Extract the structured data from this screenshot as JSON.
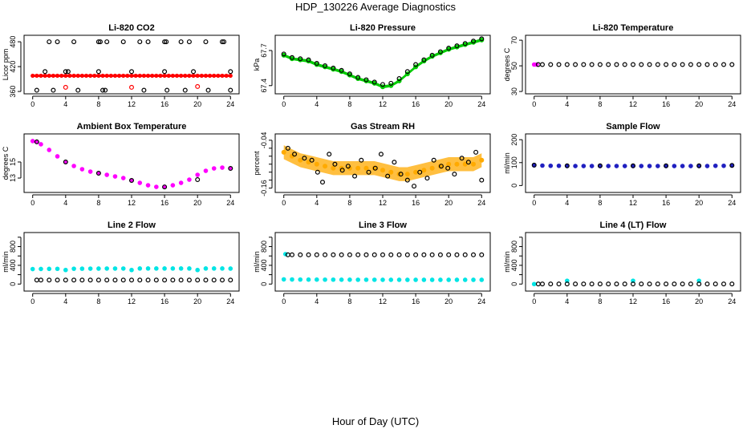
{
  "figure": {
    "title": "HDP_130226  Average Diagnostics",
    "xlabel": "Hour of Day (UTC)"
  },
  "chart_data": [
    {
      "type": "scatter",
      "title": "Li-820 CO2",
      "ylabel": "Licor ppm",
      "xlim": [
        0,
        24
      ],
      "xticks": [
        0,
        4,
        8,
        12,
        16,
        20,
        24
      ],
      "ylim": [
        360,
        490
      ],
      "yticks": [
        360,
        420,
        480
      ],
      "series": [
        {
          "style": "red-band",
          "color": "#ff0000",
          "x_range": [
            0,
            24
          ],
          "y": [
            395,
            401
          ]
        },
        {
          "style": "open-circle",
          "color": "#000000",
          "x": [
            2,
            3,
            5,
            8,
            8.2,
            9,
            11,
            13,
            14,
            16,
            16.2,
            18,
            19,
            21,
            23,
            23.2
          ],
          "y": [
            480,
            480,
            480,
            480,
            480,
            480,
            480,
            480,
            480,
            480,
            480,
            480,
            480,
            480,
            480,
            480
          ]
        },
        {
          "style": "open-circle",
          "color": "#000000",
          "x": [
            1.5,
            4,
            4.3,
            8,
            12,
            16,
            19.5,
            24
          ],
          "y": [
            408,
            408,
            408,
            408,
            408,
            408,
            408,
            408
          ]
        },
        {
          "style": "open-circle",
          "color": "#000000",
          "x": [
            0.5,
            2.5,
            5.5,
            8.5,
            8.8,
            13.5,
            16.3,
            18.5,
            21.3,
            24
          ],
          "y": [
            363,
            363,
            363,
            363,
            363,
            363,
            363,
            363,
            363,
            363
          ]
        },
        {
          "style": "open-circle",
          "color": "#ff0000",
          "x": [
            4,
            12,
            20
          ],
          "y": [
            370,
            370,
            372
          ]
        }
      ]
    },
    {
      "type": "scatter",
      "title": "Li-820 Pressure",
      "ylabel": "kPa",
      "xlim": [
        0,
        24
      ],
      "xticks": [
        0,
        4,
        8,
        12,
        16,
        20,
        24
      ],
      "ylim": [
        67.35,
        67.81
      ],
      "yticks": [
        67.4,
        67.7
      ],
      "series": [
        {
          "style": "green-band",
          "color": "#00cc00",
          "x": [
            0,
            1,
            2,
            3,
            4,
            5,
            6,
            7,
            8,
            9,
            10,
            11,
            12,
            13,
            14,
            15,
            16,
            17,
            18,
            19,
            20,
            21,
            22,
            23,
            24
          ],
          "y": [
            67.66,
            67.63,
            67.62,
            67.61,
            67.58,
            67.56,
            67.54,
            67.52,
            67.49,
            67.46,
            67.44,
            67.42,
            67.39,
            67.4,
            67.44,
            67.5,
            67.56,
            67.61,
            67.65,
            67.68,
            67.71,
            67.73,
            67.75,
            67.77,
            67.79
          ],
          "band": 0.025
        },
        {
          "style": "open-circle",
          "color": "#000000",
          "x": [
            0,
            1,
            2,
            3,
            4,
            5,
            6,
            7,
            8,
            9,
            10,
            11,
            12,
            13,
            14,
            15,
            16,
            17,
            18,
            19,
            20,
            21,
            22,
            23,
            24
          ],
          "y": [
            67.67,
            67.64,
            67.63,
            67.62,
            67.59,
            67.57,
            67.55,
            67.53,
            67.5,
            67.47,
            67.45,
            67.43,
            67.41,
            67.42,
            67.46,
            67.52,
            67.58,
            67.62,
            67.66,
            67.69,
            67.72,
            67.74,
            67.76,
            67.78,
            67.8
          ]
        }
      ]
    },
    {
      "type": "scatter",
      "title": "Li-820 Temperature",
      "ylabel": "degrees C",
      "xlim": [
        0,
        24
      ],
      "xticks": [
        0,
        4,
        8,
        12,
        16,
        20,
        24
      ],
      "ylim": [
        30,
        72
      ],
      "yticks": [
        30,
        50,
        70
      ],
      "series": [
        {
          "style": "filled-circle",
          "color": "#ff00ff",
          "x": [
            0,
            0.3
          ],
          "y": [
            51,
            51
          ]
        },
        {
          "style": "open-circle",
          "color": "#000000",
          "x": [
            0.5,
            1,
            2,
            3,
            4,
            5,
            6,
            7,
            8,
            9,
            10,
            11,
            12,
            13,
            14,
            15,
            16,
            17,
            18,
            19,
            20,
            21,
            22,
            23,
            24
          ],
          "y": [
            51,
            51,
            51,
            51,
            51,
            51,
            51,
            51,
            51,
            51,
            51,
            51,
            51,
            51,
            51,
            51,
            51,
            51,
            51,
            51,
            51,
            51,
            51,
            51,
            51
          ]
        }
      ]
    },
    {
      "type": "scatter",
      "title": "Ambient Box Temperature",
      "ylabel": "degrees C",
      "xlim": [
        0,
        24
      ],
      "xticks": [
        0,
        4,
        8,
        12,
        16,
        20,
        24
      ],
      "ylim": [
        11.5,
        18.2
      ],
      "yticks": [
        13,
        15
      ],
      "series": [
        {
          "style": "filled-circle",
          "color": "#ff00ff",
          "x": [
            0,
            0.5,
            1,
            2,
            3,
            4,
            5,
            6,
            7,
            8,
            9,
            10,
            11,
            12,
            13,
            14,
            15,
            16,
            17,
            18,
            19,
            20,
            21,
            22,
            23,
            24
          ],
          "y": [
            17.6,
            17.5,
            17.2,
            16.5,
            15.7,
            15.0,
            14.5,
            14.1,
            13.8,
            13.6,
            13.4,
            13.2,
            13.0,
            12.7,
            12.4,
            12.1,
            11.9,
            11.9,
            12.1,
            12.4,
            12.8,
            13.4,
            13.9,
            14.2,
            14.3,
            14.2
          ]
        },
        {
          "style": "open-circle",
          "color": "#000000",
          "x": [
            0.5,
            4,
            8,
            12,
            16,
            20,
            24
          ],
          "y": [
            17.5,
            15.0,
            13.6,
            12.7,
            11.9,
            12.8,
            14.2
          ]
        }
      ]
    },
    {
      "type": "scatter",
      "title": "Gas Stream RH",
      "ylabel": "percent",
      "xlim": [
        0,
        24
      ],
      "xticks": [
        0,
        4,
        8,
        12,
        16,
        20,
        24
      ],
      "ylim": [
        -0.165,
        -0.03
      ],
      "yticks": [
        -0.16,
        -0.14,
        -0.12,
        -0.1,
        -0.08,
        -0.06,
        -0.04
      ],
      "yticklabels": [
        "-0.16",
        "-0.10",
        "-0.04"
      ],
      "series": [
        {
          "style": "orange-band",
          "color": "#ffaa00",
          "x": [
            0,
            1,
            2,
            3,
            4,
            5,
            6,
            7,
            8,
            9,
            10,
            11,
            12,
            13,
            14,
            15,
            16,
            17,
            18,
            19,
            20,
            21,
            22,
            23,
            24
          ],
          "y": [
            -0.07,
            -0.08,
            -0.09,
            -0.095,
            -0.1,
            -0.105,
            -0.11,
            -0.11,
            -0.11,
            -0.11,
            -0.11,
            -0.11,
            -0.115,
            -0.12,
            -0.125,
            -0.125,
            -0.12,
            -0.115,
            -0.11,
            -0.105,
            -0.1,
            -0.1,
            -0.1,
            -0.1,
            -0.09
          ],
          "band": 0.035
        },
        {
          "style": "open-circle",
          "color": "#000000",
          "x": [
            0.5,
            1.3,
            2.5,
            3.4,
            4.1,
            4.7,
            5.5,
            6.2,
            7.1,
            7.8,
            8.6,
            9.4,
            10.3,
            11.1,
            11.8,
            12.6,
            13.4,
            14.2,
            15.0,
            15.8,
            16.5,
            17.4,
            18.2,
            19.1,
            19.9,
            20.7,
            21.6,
            22.4,
            23.3,
            24
          ],
          "y": [
            -0.06,
            -0.075,
            -0.085,
            -0.09,
            -0.12,
            -0.145,
            -0.075,
            -0.1,
            -0.115,
            -0.105,
            -0.13,
            -0.09,
            -0.12,
            -0.11,
            -0.075,
            -0.13,
            -0.095,
            -0.125,
            -0.14,
            -0.155,
            -0.12,
            -0.135,
            -0.09,
            -0.105,
            -0.11,
            -0.125,
            -0.085,
            -0.095,
            -0.07,
            -0.14
          ]
        }
      ]
    },
    {
      "type": "scatter",
      "title": "Sample Flow",
      "ylabel": "ml/min",
      "xlim": [
        0,
        24
      ],
      "xticks": [
        0,
        4,
        8,
        12,
        16,
        20,
        24
      ],
      "ylim": [
        -20,
        215
      ],
      "yticks": [
        0,
        100,
        200
      ],
      "series": [
        {
          "style": "filled-circle",
          "color": "#2020c0",
          "x": [
            0,
            1,
            2,
            3,
            4,
            5,
            6,
            7,
            8,
            9,
            10,
            11,
            12,
            13,
            14,
            15,
            16,
            17,
            18,
            19,
            20,
            21,
            22,
            23,
            24
          ],
          "y": [
            88,
            87,
            86,
            86,
            85,
            85,
            85,
            85,
            85,
            85,
            85,
            85,
            85,
            85,
            85,
            85,
            85,
            85,
            85,
            85,
            85,
            85,
            86,
            86,
            87
          ]
        },
        {
          "style": "open-circle",
          "color": "#000000",
          "x": [
            0,
            4,
            8,
            12,
            16,
            20,
            24
          ],
          "y": [
            89,
            86,
            86,
            86,
            86,
            86,
            88
          ]
        }
      ]
    },
    {
      "type": "scatter",
      "title": "Line 2 Flow",
      "ylabel": "ml/min",
      "xlim": [
        0,
        24
      ],
      "xticks": [
        0,
        4,
        8,
        12,
        16,
        20,
        24
      ],
      "ylim": [
        -100,
        1050
      ],
      "yticks": [
        0,
        200,
        400,
        600,
        800,
        1000
      ],
      "yticklabels": [
        "0",
        "400",
        "800"
      ],
      "series": [
        {
          "style": "filled-circle",
          "color": "#00e5e5",
          "x": [
            0,
            1,
            2,
            3,
            4,
            5,
            6,
            7,
            8,
            9,
            10,
            11,
            12,
            13,
            14,
            15,
            16,
            17,
            18,
            19,
            20,
            21,
            22,
            23,
            24
          ],
          "y": [
            320,
            322,
            324,
            325,
            300,
            327,
            328,
            329,
            330,
            331,
            331,
            331,
            300,
            332,
            332,
            332,
            332,
            332,
            332,
            332,
            300,
            332,
            332,
            332,
            330
          ]
        },
        {
          "style": "open-circle",
          "color": "#000000",
          "x": [
            0.5,
            1,
            2,
            3,
            4,
            5,
            6,
            7,
            8,
            9,
            10,
            11,
            12,
            13,
            14,
            15,
            16,
            17,
            18,
            19,
            20,
            21,
            22,
            23,
            24
          ],
          "y": [
            85,
            85,
            85,
            85,
            85,
            85,
            85,
            85,
            85,
            85,
            85,
            85,
            85,
            85,
            85,
            85,
            85,
            85,
            85,
            85,
            85,
            85,
            85,
            85,
            85
          ]
        }
      ]
    },
    {
      "type": "scatter",
      "title": "Line 3 Flow",
      "ylabel": "ml/min",
      "xlim": [
        0,
        24
      ],
      "xticks": [
        0,
        4,
        8,
        12,
        16,
        20,
        24
      ],
      "ylim": [
        -100,
        1050
      ],
      "yticks": [
        0,
        200,
        400,
        600,
        800,
        1000
      ],
      "yticklabels": [
        "0",
        "400",
        "800"
      ],
      "series": [
        {
          "style": "filled-circle",
          "color": "#00e5e5",
          "x": [
            0,
            1,
            2,
            3,
            4,
            5,
            6,
            7,
            8,
            9,
            10,
            11,
            12,
            13,
            14,
            15,
            16,
            17,
            18,
            19,
            20,
            21,
            22,
            23,
            24
          ],
          "y": [
            100,
            98,
            96,
            95,
            95,
            94,
            94,
            93,
            93,
            92,
            92,
            92,
            91,
            91,
            91,
            90,
            90,
            90,
            90,
            90,
            90,
            90,
            90,
            90,
            90
          ]
        },
        {
          "style": "filled-circle",
          "color": "#00e5e5",
          "x": [
            0.2
          ],
          "y": [
            640
          ]
        },
        {
          "style": "open-circle",
          "color": "#000000",
          "x": [
            0.5,
            1,
            2,
            3,
            4,
            5,
            6,
            7,
            8,
            9,
            10,
            11,
            12,
            13,
            14,
            15,
            16,
            17,
            18,
            19,
            20,
            21,
            22,
            23,
            24
          ],
          "y": [
            625,
            625,
            625,
            625,
            625,
            625,
            625,
            625,
            625,
            625,
            625,
            625,
            625,
            625,
            625,
            625,
            625,
            625,
            625,
            625,
            625,
            625,
            625,
            625,
            625
          ]
        }
      ]
    },
    {
      "type": "scatter",
      "title": "Line 4 (LT) Flow",
      "ylabel": "ml/min",
      "xlim": [
        0,
        24
      ],
      "xticks": [
        0,
        4,
        8,
        12,
        16,
        20,
        24
      ],
      "ylim": [
        -100,
        1050
      ],
      "yticks": [
        0,
        200,
        400,
        600,
        800,
        1000
      ],
      "yticklabels": [
        "0",
        "400",
        "800"
      ],
      "series": [
        {
          "style": "filled-circle",
          "color": "#00e5e5",
          "x": [
            0,
            4,
            12,
            20
          ],
          "y": [
            0,
            70,
            70,
            70
          ]
        },
        {
          "style": "open-circle",
          "color": "#000000",
          "x": [
            0.5,
            1,
            2,
            3,
            4,
            5,
            6,
            7,
            8,
            9,
            10,
            11,
            12,
            13,
            14,
            15,
            16,
            17,
            18,
            19,
            20,
            21,
            22,
            23,
            24
          ],
          "y": [
            2,
            2,
            2,
            2,
            2,
            2,
            2,
            2,
            2,
            2,
            2,
            2,
            2,
            2,
            2,
            2,
            2,
            2,
            2,
            2,
            2,
            2,
            2,
            2,
            2
          ]
        }
      ]
    }
  ]
}
